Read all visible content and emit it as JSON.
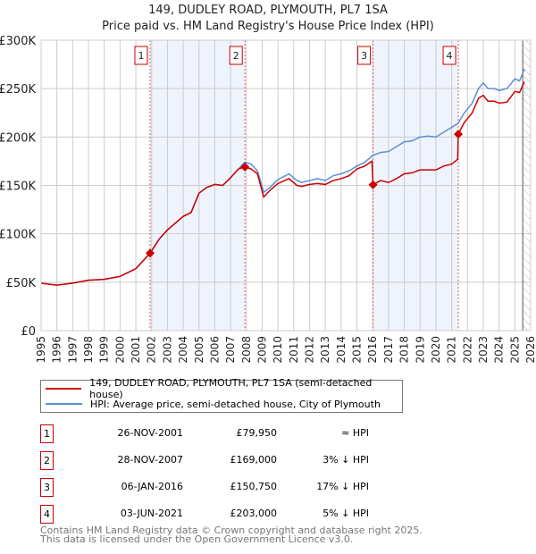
{
  "chart_data": {
    "type": "line",
    "title": "149, DUDLEY ROAD, PLYMOUTH, PL7 1SA",
    "subtitle": "Price paid vs. HM Land Registry's House Price Index (HPI)",
    "xlim": [
      1995,
      2026
    ],
    "ylim": [
      0,
      300000
    ],
    "yticks": [
      {
        "v": 0,
        "label": "£0"
      },
      {
        "v": 50000,
        "label": "£50K"
      },
      {
        "v": 100000,
        "label": "£100K"
      },
      {
        "v": 150000,
        "label": "£150K"
      },
      {
        "v": 200000,
        "label": "£200K"
      },
      {
        "v": 250000,
        "label": "£250K"
      },
      {
        "v": 300000,
        "label": "£300K"
      }
    ],
    "xticks": [
      "1995",
      "1996",
      "1997",
      "1998",
      "1999",
      "2000",
      "2001",
      "2002",
      "2003",
      "2004",
      "2005",
      "2006",
      "2007",
      "2008",
      "2009",
      "2010",
      "2011",
      "2012",
      "2013",
      "2014",
      "2015",
      "2016",
      "2017",
      "2018",
      "2019",
      "2020",
      "2021",
      "2022",
      "2023",
      "2024",
      "2025",
      "2026"
    ],
    "grid": true,
    "series": [
      {
        "name": "149, DUDLEY ROAD, PLYMOUTH, PL7 1SA (semi-detached house)",
        "color": "#cc0000",
        "points": [
          [
            1995,
            49000
          ],
          [
            1996,
            47000
          ],
          [
            1997,
            49000
          ],
          [
            1998,
            52000
          ],
          [
            1999,
            53000
          ],
          [
            2000,
            56000
          ],
          [
            2001,
            64000
          ],
          [
            2001.9,
            79950
          ],
          [
            2002.5,
            95000
          ],
          [
            2003,
            104000
          ],
          [
            2004,
            118000
          ],
          [
            2004.5,
            122000
          ],
          [
            2005,
            142000
          ],
          [
            2005.5,
            148000
          ],
          [
            2006,
            151000
          ],
          [
            2006.5,
            150000
          ],
          [
            2007,
            158000
          ],
          [
            2007.5,
            167000
          ],
          [
            2007.91,
            169000
          ],
          [
            2008.3,
            167000
          ],
          [
            2008.7,
            162000
          ],
          [
            2009.1,
            138000
          ],
          [
            2009.5,
            145000
          ],
          [
            2010,
            152000
          ],
          [
            2010.7,
            157000
          ],
          [
            2011.2,
            150000
          ],
          [
            2011.5,
            149000
          ],
          [
            2012,
            151000
          ],
          [
            2012.5,
            152000
          ],
          [
            2013,
            151000
          ],
          [
            2013.5,
            155000
          ],
          [
            2014,
            157000
          ],
          [
            2014.5,
            160000
          ],
          [
            2015,
            167000
          ],
          [
            2015.5,
            170000
          ],
          [
            2015.95,
            175000
          ],
          [
            2016.02,
            150750
          ],
          [
            2016.5,
            155000
          ],
          [
            2017,
            153000
          ],
          [
            2017.5,
            157000
          ],
          [
            2018,
            162000
          ],
          [
            2018.5,
            163000
          ],
          [
            2019,
            166000
          ],
          [
            2019.5,
            166000
          ],
          [
            2020,
            166000
          ],
          [
            2020.5,
            170000
          ],
          [
            2021,
            172000
          ],
          [
            2021.38,
            177000
          ],
          [
            2021.42,
            203000
          ],
          [
            2021.8,
            215000
          ],
          [
            2022.3,
            225000
          ],
          [
            2022.7,
            240000
          ],
          [
            2023,
            243000
          ],
          [
            2023.3,
            237000
          ],
          [
            2023.7,
            237000
          ],
          [
            2024,
            235000
          ],
          [
            2024.5,
            236000
          ],
          [
            2025,
            247000
          ],
          [
            2025.3,
            246000
          ],
          [
            2025.6,
            257000
          ]
        ]
      },
      {
        "name": "HPI: Average price, semi-detached house, City of Plymouth",
        "color": "#5b8fd4",
        "points": [
          [
            1995,
            49000
          ],
          [
            1996,
            47000
          ],
          [
            1997,
            49000
          ],
          [
            1998,
            52000
          ],
          [
            1999,
            53000
          ],
          [
            2000,
            56000
          ],
          [
            2001,
            64000
          ],
          [
            2001.9,
            80000
          ],
          [
            2002.5,
            95000
          ],
          [
            2003,
            104000
          ],
          [
            2004,
            118000
          ],
          [
            2004.5,
            122000
          ],
          [
            2005,
            142000
          ],
          [
            2005.5,
            148000
          ],
          [
            2006,
            151000
          ],
          [
            2006.5,
            150000
          ],
          [
            2007,
            158000
          ],
          [
            2007.5,
            167000
          ],
          [
            2007.9,
            174000
          ],
          [
            2008.3,
            172000
          ],
          [
            2008.7,
            165000
          ],
          [
            2009.1,
            143000
          ],
          [
            2009.5,
            148000
          ],
          [
            2010,
            156000
          ],
          [
            2010.7,
            162000
          ],
          [
            2011.2,
            155000
          ],
          [
            2011.5,
            153000
          ],
          [
            2012,
            155000
          ],
          [
            2012.5,
            157000
          ],
          [
            2013,
            155000
          ],
          [
            2013.5,
            160000
          ],
          [
            2014,
            162000
          ],
          [
            2014.5,
            165000
          ],
          [
            2015,
            170000
          ],
          [
            2015.5,
            174000
          ],
          [
            2016,
            181000
          ],
          [
            2016.5,
            184000
          ],
          [
            2017,
            185000
          ],
          [
            2017.5,
            190000
          ],
          [
            2018,
            195000
          ],
          [
            2018.5,
            196000
          ],
          [
            2019,
            200000
          ],
          [
            2019.5,
            201000
          ],
          [
            2020,
            200000
          ],
          [
            2020.5,
            205000
          ],
          [
            2021,
            210000
          ],
          [
            2021.4,
            214000
          ],
          [
            2021.8,
            225000
          ],
          [
            2022.3,
            235000
          ],
          [
            2022.7,
            250000
          ],
          [
            2023,
            256000
          ],
          [
            2023.3,
            250000
          ],
          [
            2023.7,
            250000
          ],
          [
            2024,
            248000
          ],
          [
            2024.5,
            250000
          ],
          [
            2025,
            260000
          ],
          [
            2025.3,
            258000
          ],
          [
            2025.6,
            270000
          ]
        ]
      }
    ],
    "sales": [
      {
        "label": "1",
        "x": 2001.9,
        "value": 79950
      },
      {
        "label": "2",
        "x": 2007.91,
        "value": 169000
      },
      {
        "label": "3",
        "x": 2016.02,
        "value": 150750
      },
      {
        "label": "4",
        "x": 2021.42,
        "value": 203000
      }
    ],
    "shaded_ranges": [
      [
        2001.9,
        2007.91
      ],
      [
        2016.02,
        2021.42
      ]
    ],
    "forecast_from": 2025.5
  },
  "legend": {
    "red": "149, DUDLEY ROAD, PLYMOUTH, PL7 1SA (semi-detached house)",
    "blue": "HPI: Average price, semi-detached house, City of Plymouth"
  },
  "table": [
    {
      "num": "1",
      "date": "26-NOV-2001",
      "price": "£79,950",
      "rel": "≈ HPI"
    },
    {
      "num": "2",
      "date": "28-NOV-2007",
      "price": "£169,000",
      "rel": "3% ↓ HPI"
    },
    {
      "num": "3",
      "date": "06-JAN-2016",
      "price": "£150,750",
      "rel": "17% ↓ HPI"
    },
    {
      "num": "4",
      "date": "03-JUN-2021",
      "price": "£203,000",
      "rel": "5% ↓ HPI"
    }
  ],
  "footer": {
    "line1": "Contains HM Land Registry data © Crown copyright and database right 2025.",
    "line2": "This data is licensed under the Open Government Licence v3.0."
  }
}
